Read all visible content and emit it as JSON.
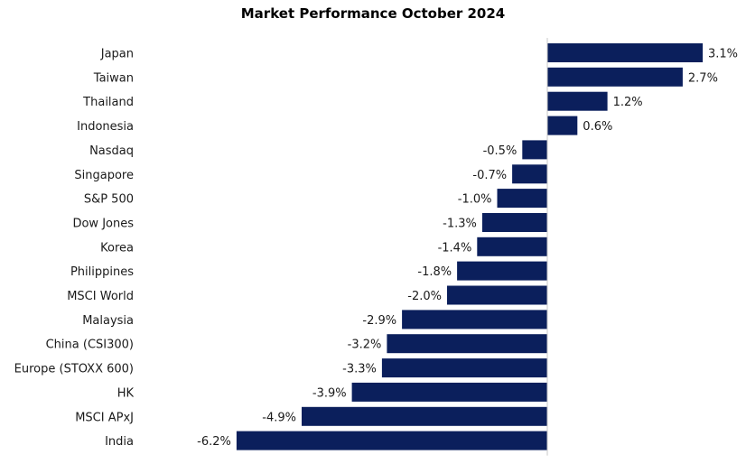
{
  "chart_data": {
    "type": "bar",
    "orientation": "horizontal",
    "title": "Market Performance October 2024",
    "xlabel": "",
    "ylabel": "",
    "categories": [
      "Japan",
      "Taiwan",
      "Thailand",
      "Indonesia",
      "Nasdaq",
      "Singapore",
      "S&P 500",
      "Dow Jones",
      "Korea",
      "Philippines",
      "MSCI World",
      "Malaysia",
      "China (CSI300)",
      "Europe (STOXX 600)",
      "HK",
      "MSCI APxJ",
      "India"
    ],
    "values": [
      3.1,
      2.7,
      1.2,
      0.6,
      -0.5,
      -0.7,
      -1.0,
      -1.3,
      -1.4,
      -1.8,
      -2.0,
      -2.9,
      -3.2,
      -3.3,
      -3.9,
      -4.9,
      -6.2
    ],
    "data_labels": [
      "3.1%",
      "2.7%",
      "1.2%",
      "0.6%",
      "-0.5%",
      "-0.7%",
      "-1.0%",
      "-1.3%",
      "-1.4%",
      "-1.8%",
      "-2.0%",
      "-2.9%",
      "-3.2%",
      "-3.3%",
      "-3.9%",
      "-4.9%",
      "-6.2%"
    ],
    "bar_color": "#0b1f5c",
    "axis_color": "#c8c8c8",
    "grid": false,
    "legend": "none"
  }
}
